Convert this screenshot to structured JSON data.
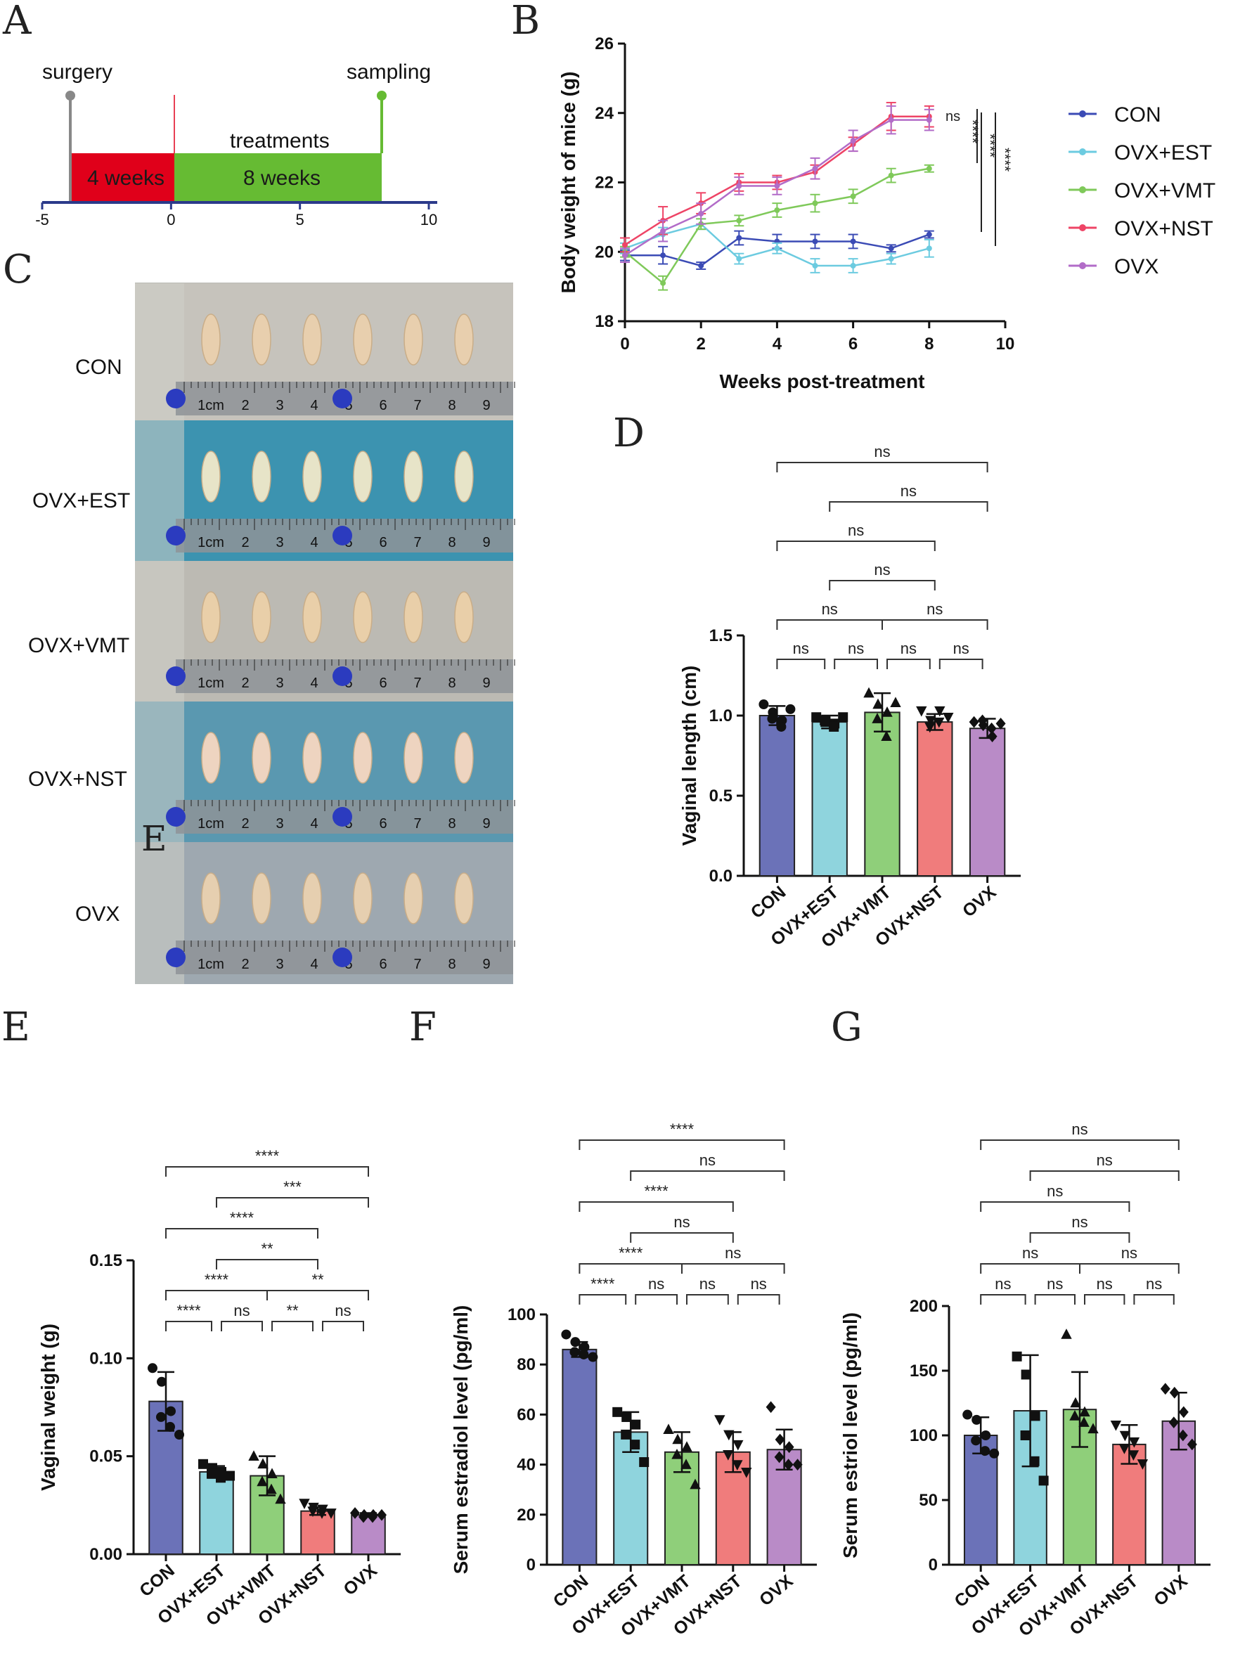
{
  "panel_letters": {
    "a": "A",
    "b": "B",
    "c": "C",
    "d": "D",
    "e": "E",
    "f": "F",
    "g": "G"
  },
  "colors": {
    "CON": "#6b72b8",
    "OVX+EST": "#8fd4dd",
    "OVX+VMT": "#8fcf7a",
    "OVX+NST": "#f07c7c",
    "OVX": "#b98bc7",
    "red": "#e0001a",
    "green": "#66bb33"
  },
  "timeline": {
    "labels": {
      "surgery": "surgery",
      "sampling": "sampling",
      "treatments": "treatments",
      "phase1": "4 weeks",
      "phase2": "8 weeks"
    },
    "axis_ticks": [
      "-5",
      "0",
      "5",
      "10"
    ],
    "phases": [
      {
        "name": "4 weeks",
        "start": -4,
        "end": 0
      },
      {
        "name": "8 weeks",
        "start": 0,
        "end": 8
      }
    ],
    "range": [
      -5,
      10
    ]
  },
  "photo": {
    "groups": [
      "CON",
      "OVX+EST",
      "OVX+VMT",
      "OVX+NST",
      "OVX"
    ],
    "ruler_ticks": [
      "1cm",
      "2",
      "3",
      "4",
      "5",
      "6",
      "7",
      "8",
      "9"
    ],
    "overlay_letter": "E"
  },
  "chart_data": [
    {
      "id": "B",
      "type": "line",
      "title": "",
      "xlabel": "Weeks post-treatment",
      "ylabel": "Body weight of mice (g)",
      "xlim": [
        0,
        10
      ],
      "ylim": [
        18,
        26
      ],
      "xticks": [
        "0",
        "2",
        "4",
        "6",
        "8",
        "10"
      ],
      "yticks": [
        "18",
        "20",
        "22",
        "24",
        "26"
      ],
      "x": [
        0,
        1,
        2,
        3,
        4,
        5,
        6,
        7,
        8
      ],
      "series": [
        {
          "name": "CON",
          "values": [
            19.9,
            19.9,
            19.6,
            20.4,
            20.3,
            20.3,
            20.3,
            20.1,
            20.5
          ],
          "err": [
            0.15,
            0.25,
            0.1,
            0.2,
            0.2,
            0.2,
            0.2,
            0.1,
            0.1
          ]
        },
        {
          "name": "OVX+EST",
          "values": [
            20.1,
            20.5,
            20.8,
            19.8,
            20.1,
            19.6,
            19.6,
            19.8,
            20.1
          ],
          "err": [
            0.15,
            0.2,
            0.15,
            0.15,
            0.15,
            0.2,
            0.2,
            0.15,
            0.25
          ]
        },
        {
          "name": "OVX+VMT",
          "values": [
            20.0,
            19.1,
            20.8,
            20.9,
            21.2,
            21.4,
            21.6,
            22.2,
            22.4
          ],
          "err": [
            0.15,
            0.2,
            0.15,
            0.15,
            0.2,
            0.25,
            0.2,
            0.2,
            0.1
          ]
        },
        {
          "name": "OVX+NST",
          "values": [
            20.2,
            20.9,
            21.4,
            22.0,
            22.0,
            22.3,
            23.1,
            23.9,
            23.9
          ],
          "err": [
            0.2,
            0.4,
            0.3,
            0.25,
            0.2,
            0.2,
            0.2,
            0.4,
            0.3
          ]
        },
        {
          "name": "OVX",
          "values": [
            19.9,
            20.6,
            21.1,
            21.9,
            21.9,
            22.4,
            23.2,
            23.8,
            23.8
          ],
          "err": [
            0.2,
            0.3,
            0.3,
            0.25,
            0.25,
            0.3,
            0.3,
            0.4,
            0.3
          ]
        }
      ],
      "annotations": {
        "ns": "ns",
        "stars": [
          "****",
          "****",
          "****"
        ]
      }
    },
    {
      "id": "D",
      "type": "bar",
      "ylabel": "Vaginal length (cm)",
      "ylim": [
        0,
        1.5
      ],
      "yticks": [
        "0.0",
        "0.5",
        "1.0",
        "1.5"
      ],
      "categories": [
        "CON",
        "OVX+EST",
        "OVX+VMT",
        "OVX+NST",
        "OVX"
      ],
      "values": [
        1.0,
        0.96,
        1.02,
        0.96,
        0.92
      ],
      "err": [
        0.06,
        0.04,
        0.12,
        0.05,
        0.06
      ],
      "points": [
        [
          1.07,
          1.02,
          0.97,
          0.98,
          0.93,
          1.04
        ],
        [
          0.99,
          0.96,
          0.95,
          0.97,
          0.93,
          0.99
        ],
        [
          1.14,
          1.07,
          1.02,
          0.98,
          0.87,
          1.08
        ],
        [
          1.03,
          0.97,
          1.03,
          0.93,
          0.96,
          0.99
        ],
        [
          0.96,
          0.94,
          0.87,
          0.97,
          0.92,
          0.95
        ]
      ],
      "markers": [
        "circle",
        "square",
        "triangle",
        "tri-down",
        "diamond"
      ],
      "comparisons": [
        {
          "from": 0,
          "to": 1,
          "label": "ns"
        },
        {
          "from": 1,
          "to": 2,
          "label": "ns"
        },
        {
          "from": 2,
          "to": 3,
          "label": "ns"
        },
        {
          "from": 3,
          "to": 4,
          "label": "ns"
        },
        {
          "from": 0,
          "to": 2,
          "label": "ns"
        },
        {
          "from": 2,
          "to": 4,
          "label": "ns"
        },
        {
          "from": 1,
          "to": 3,
          "label": "ns"
        },
        {
          "from": 0,
          "to": 3,
          "label": "ns"
        },
        {
          "from": 1,
          "to": 4,
          "label": "ns"
        },
        {
          "from": 0,
          "to": 4,
          "label": "ns"
        }
      ]
    },
    {
      "id": "E",
      "type": "bar",
      "ylabel": "Vaginal weight (g)",
      "ylim": [
        0,
        0.15
      ],
      "yticks": [
        "0.00",
        "0.05",
        "0.10",
        "0.15"
      ],
      "categories": [
        "CON",
        "OVX+EST",
        "OVX+VMT",
        "OVX+NST",
        "OVX"
      ],
      "values": [
        0.078,
        0.042,
        0.04,
        0.022,
        0.02
      ],
      "err": [
        0.015,
        0.003,
        0.01,
        0.002,
        0.001
      ],
      "points": [
        [
          0.095,
          0.088,
          0.073,
          0.07,
          0.065,
          0.061
        ],
        [
          0.046,
          0.044,
          0.042,
          0.041,
          0.039,
          0.04
        ],
        [
          0.05,
          0.046,
          0.041,
          0.037,
          0.033,
          0.028
        ],
        [
          0.026,
          0.024,
          0.023,
          0.022,
          0.021,
          0.021
        ],
        [
          0.021,
          0.02,
          0.02,
          0.019,
          0.019,
          0.02
        ]
      ],
      "markers": [
        "circle",
        "square",
        "triangle",
        "tri-down",
        "diamond"
      ],
      "comparisons": [
        {
          "from": 0,
          "to": 1,
          "label": "****"
        },
        {
          "from": 1,
          "to": 2,
          "label": "ns"
        },
        {
          "from": 2,
          "to": 3,
          "label": "**"
        },
        {
          "from": 3,
          "to": 4,
          "label": "ns"
        },
        {
          "from": 0,
          "to": 2,
          "label": "****"
        },
        {
          "from": 2,
          "to": 4,
          "label": "**"
        },
        {
          "from": 1,
          "to": 3,
          "label": "**"
        },
        {
          "from": 0,
          "to": 3,
          "label": "****"
        },
        {
          "from": 1,
          "to": 4,
          "label": "***"
        },
        {
          "from": 0,
          "to": 4,
          "label": "****"
        }
      ]
    },
    {
      "id": "F",
      "type": "bar",
      "ylabel": "Serum estradiol level (pg/ml)",
      "ylim": [
        0,
        100
      ],
      "yticks": [
        "0",
        "20",
        "40",
        "60",
        "80",
        "100"
      ],
      "categories": [
        "CON",
        "OVX+EST",
        "OVX+VMT",
        "OVX+NST",
        "OVX"
      ],
      "values": [
        86,
        53,
        45,
        45,
        46
      ],
      "err": [
        3,
        8,
        8,
        8,
        8
      ],
      "points": [
        [
          92,
          89,
          87,
          85,
          84,
          83
        ],
        [
          61,
          59,
          56,
          52,
          48,
          41
        ],
        [
          54,
          50,
          47,
          44,
          40,
          32
        ],
        [
          58,
          52,
          48,
          44,
          40,
          37
        ],
        [
          63,
          50,
          47,
          43,
          40,
          40
        ]
      ],
      "markers": [
        "circle",
        "square",
        "triangle",
        "tri-down",
        "diamond"
      ],
      "comparisons": [
        {
          "from": 0,
          "to": 1,
          "label": "****"
        },
        {
          "from": 1,
          "to": 2,
          "label": "ns"
        },
        {
          "from": 2,
          "to": 3,
          "label": "ns"
        },
        {
          "from": 3,
          "to": 4,
          "label": "ns"
        },
        {
          "from": 0,
          "to": 2,
          "label": "****"
        },
        {
          "from": 2,
          "to": 4,
          "label": "ns"
        },
        {
          "from": 1,
          "to": 3,
          "label": "ns"
        },
        {
          "from": 0,
          "to": 3,
          "label": "****"
        },
        {
          "from": 1,
          "to": 4,
          "label": "ns"
        },
        {
          "from": 0,
          "to": 4,
          "label": "****"
        }
      ]
    },
    {
      "id": "G",
      "type": "bar",
      "ylabel": "Serum estriol level (pg/ml)",
      "ylim": [
        0,
        200
      ],
      "yticks": [
        "0",
        "50",
        "100",
        "150",
        "200"
      ],
      "categories": [
        "CON",
        "OVX+EST",
        "OVX+VMT",
        "OVX+NST",
        "OVX"
      ],
      "values": [
        100,
        119,
        120,
        93,
        111
      ],
      "err": [
        14,
        43,
        29,
        15,
        22
      ],
      "points": [
        [
          116,
          112,
          100,
          96,
          88,
          86
        ],
        [
          161,
          147,
          115,
          100,
          80,
          65
        ],
        [
          178,
          125,
          118,
          115,
          110,
          105
        ],
        [
          108,
          100,
          95,
          90,
          85,
          78
        ],
        [
          136,
          133,
          118,
          110,
          100,
          93
        ]
      ],
      "markers": [
        "circle",
        "square",
        "triangle",
        "tri-down",
        "diamond"
      ],
      "comparisons": [
        {
          "from": 0,
          "to": 1,
          "label": "ns"
        },
        {
          "from": 1,
          "to": 2,
          "label": "ns"
        },
        {
          "from": 2,
          "to": 3,
          "label": "ns"
        },
        {
          "from": 3,
          "to": 4,
          "label": "ns"
        },
        {
          "from": 0,
          "to": 2,
          "label": "ns"
        },
        {
          "from": 2,
          "to": 4,
          "label": "ns"
        },
        {
          "from": 1,
          "to": 3,
          "label": "ns"
        },
        {
          "from": 0,
          "to": 3,
          "label": "ns"
        },
        {
          "from": 1,
          "to": 4,
          "label": "ns"
        },
        {
          "from": 0,
          "to": 4,
          "label": "ns"
        }
      ]
    }
  ]
}
